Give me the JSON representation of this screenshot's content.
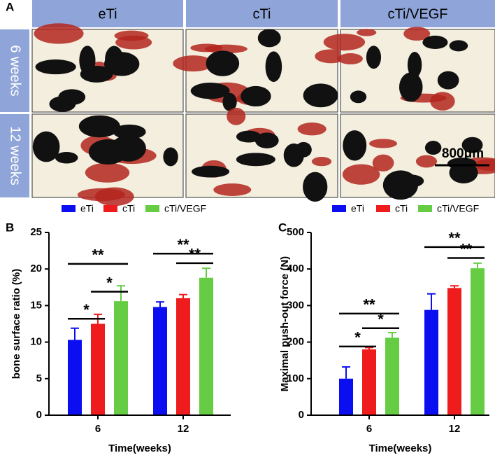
{
  "panel_a": {
    "label": "A",
    "columns": [
      "eTi",
      "cTi",
      "cTi/VEGF"
    ],
    "rows": [
      "6 weeks",
      "12 weeks"
    ],
    "scale_bar": "800μm"
  },
  "chart_data": [
    {
      "type": "bar",
      "panel_label": "B",
      "categories": [
        "6",
        "12"
      ],
      "series": [
        {
          "name": "eTi",
          "color": "#0a0ef0",
          "values": [
            10.3,
            14.8
          ],
          "errors": [
            1.6,
            0.7
          ]
        },
        {
          "name": "cTi",
          "color": "#ee1c1c",
          "values": [
            12.5,
            16.0
          ],
          "errors": [
            1.3,
            0.5
          ]
        },
        {
          "name": "cTi/VEGF",
          "color": "#66cc44",
          "values": [
            15.6,
            18.8
          ],
          "errors": [
            2.1,
            1.3
          ]
        }
      ],
      "ylim": [
        0,
        25
      ],
      "yticks": [
        0,
        5,
        10,
        15,
        20,
        25
      ],
      "ylabel": "bone surface ratio (%)",
      "xlabel": "Time(weeks)",
      "annotations": [
        {
          "label": "*",
          "group": 0,
          "from": 0,
          "to": 1,
          "y": 13.2
        },
        {
          "label": "*",
          "group": 0,
          "from": 1,
          "to": 2,
          "y": 16.9
        },
        {
          "label": "**",
          "group": 0,
          "from": 0,
          "to": 2,
          "y": 20.7
        },
        {
          "label": "**",
          "group": 1,
          "from": 0,
          "to": 2,
          "y": 22.1
        },
        {
          "label": "**",
          "group": 1,
          "from": 1,
          "to": 2,
          "y": 20.8
        }
      ]
    },
    {
      "type": "bar",
      "panel_label": "C",
      "categories": [
        "6",
        "12"
      ],
      "series": [
        {
          "name": "eTi",
          "color": "#0a0ef0",
          "values": [
            100,
            288
          ],
          "errors": [
            32,
            44
          ]
        },
        {
          "name": "cTi",
          "color": "#ee1c1c",
          "values": [
            180,
            348
          ],
          "errors": [
            5,
            6
          ]
        },
        {
          "name": "cTi/VEGF",
          "color": "#66cc44",
          "values": [
            212,
            402
          ],
          "errors": [
            14,
            14
          ]
        }
      ],
      "ylim": [
        0,
        500
      ],
      "yticks": [
        0,
        100,
        200,
        300,
        400,
        500
      ],
      "ylabel": "Maximal push-out force (N)",
      "xlabel": "Time(weeks)",
      "annotations": [
        {
          "label": "*",
          "group": 0,
          "from": 0,
          "to": 1,
          "y": 188
        },
        {
          "label": "*",
          "group": 0,
          "from": 1,
          "to": 2,
          "y": 238
        },
        {
          "label": "**",
          "group": 0,
          "from": 0,
          "to": 2,
          "y": 278
        },
        {
          "label": "**",
          "group": 1,
          "from": 0,
          "to": 2,
          "y": 460
        },
        {
          "label": "**",
          "group": 1,
          "from": 1,
          "to": 2,
          "y": 430
        }
      ]
    }
  ]
}
